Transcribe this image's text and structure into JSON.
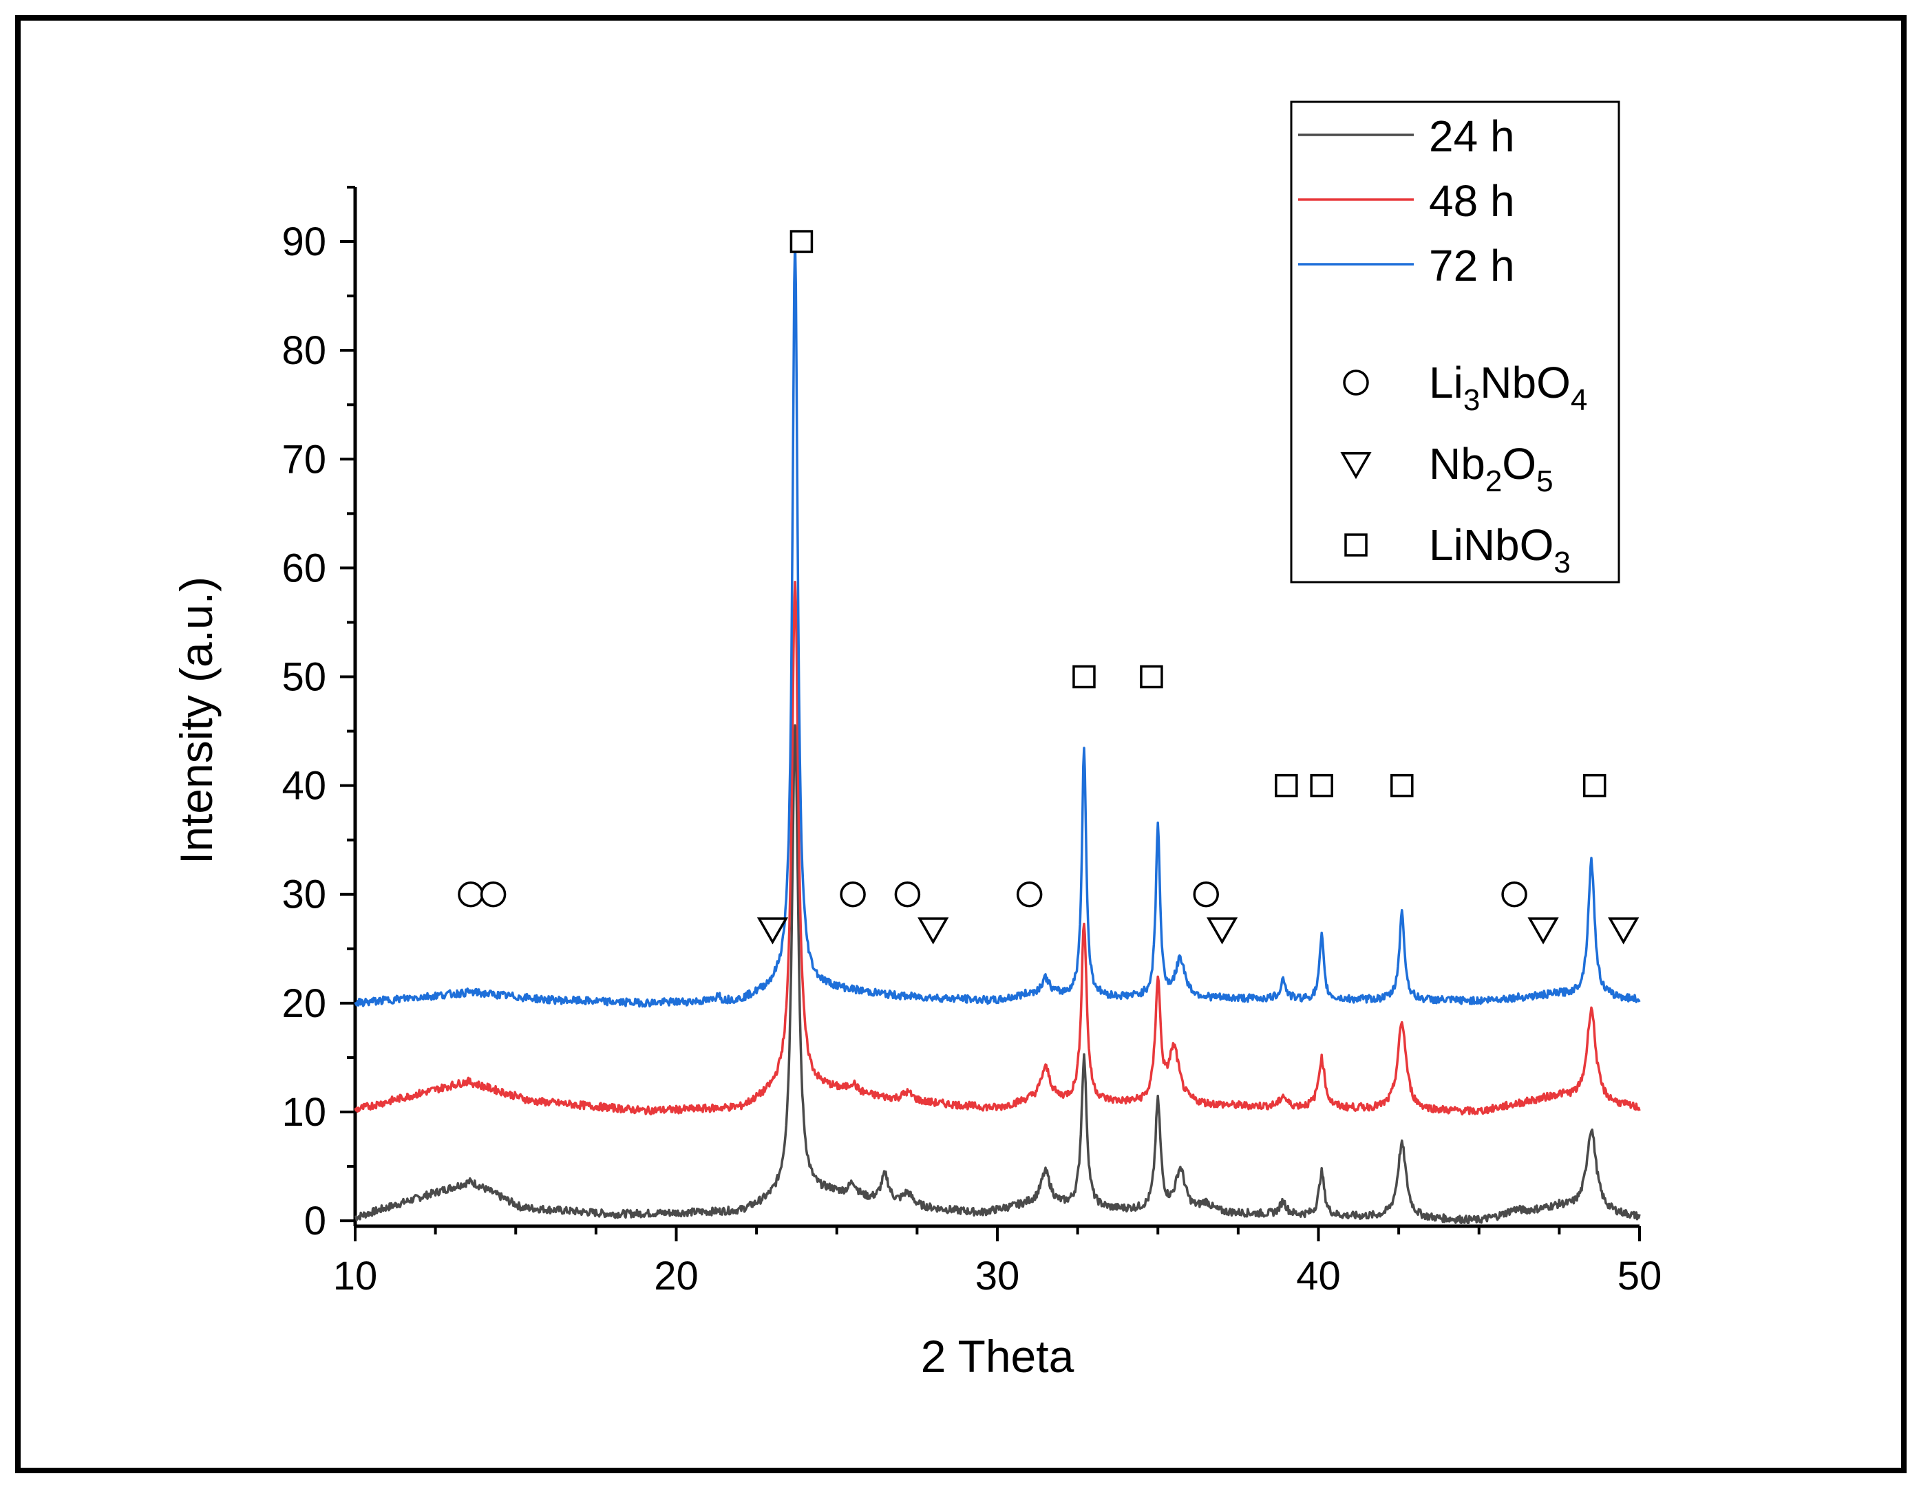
{
  "chart_data": {
    "type": "line",
    "title": "",
    "xlabel": "2 Theta",
    "ylabel": "Intensity (a.u.)",
    "xlim": [
      10,
      50
    ],
    "ylim": [
      -0.5,
      95
    ],
    "x_ticks": [
      10,
      20,
      30,
      40,
      50
    ],
    "y_ticks": [
      0,
      10,
      20,
      30,
      40,
      50,
      60,
      70,
      80,
      90
    ],
    "grid": false,
    "series": [
      {
        "name": "24 h",
        "color": "#4a4a4a",
        "baseline": 0.3,
        "background": [
          [
            10,
            0.3
          ],
          [
            13.6,
            3.6
          ],
          [
            15.2,
            1.2
          ],
          [
            18,
            0.6
          ],
          [
            22,
            0.8
          ],
          [
            23.3,
            2.0
          ],
          [
            24.8,
            2.5
          ],
          [
            27,
            1.3
          ],
          [
            29.5,
            0.7
          ],
          [
            31,
            1.5
          ],
          [
            33.5,
            1.0
          ],
          [
            45,
            0
          ],
          [
            47.5,
            1.3
          ],
          [
            50,
            0.3
          ]
        ],
        "peaks": [
          {
            "x": 23.7,
            "height": 43.5,
            "width": 0.12
          },
          {
            "x": 25.5,
            "height": 1.2,
            "width": 0.15
          },
          {
            "x": 26.5,
            "height": 2.5,
            "width": 0.15
          },
          {
            "x": 27.2,
            "height": 1.2,
            "width": 0.2
          },
          {
            "x": 31.5,
            "height": 3.0,
            "width": 0.18
          },
          {
            "x": 32.7,
            "height": 13.8,
            "width": 0.1
          },
          {
            "x": 35.0,
            "height": 10.0,
            "width": 0.1
          },
          {
            "x": 35.7,
            "height": 3.8,
            "width": 0.18
          },
          {
            "x": 36.5,
            "height": 0.8,
            "width": 0.2
          },
          {
            "x": 38.9,
            "height": 1.2,
            "width": 0.12
          },
          {
            "x": 40.1,
            "height": 4.0,
            "width": 0.1
          },
          {
            "x": 42.6,
            "height": 6.8,
            "width": 0.16
          },
          {
            "x": 46.1,
            "height": 0.4,
            "width": 0.3
          },
          {
            "x": 48.5,
            "height": 7.5,
            "width": 0.18
          }
        ]
      },
      {
        "name": "48 h",
        "color": "#e8383b",
        "baseline": 10.2,
        "background": [
          [
            10,
            10.2
          ],
          [
            13.5,
            12.8
          ],
          [
            15.5,
            11.0
          ],
          [
            19,
            10.1
          ],
          [
            22,
            10.3
          ],
          [
            23.3,
            12.0
          ],
          [
            24.8,
            12.0
          ],
          [
            27,
            11.0
          ],
          [
            30,
            10.3
          ],
          [
            31,
            11.0
          ],
          [
            33.5,
            10.8
          ],
          [
            45,
            10.0
          ],
          [
            47.5,
            11.5
          ],
          [
            50,
            10.3
          ]
        ],
        "peaks": [
          {
            "x": 23.7,
            "height": 47.0,
            "width": 0.12
          },
          {
            "x": 25.5,
            "height": 0.8,
            "width": 0.15
          },
          {
            "x": 27.2,
            "height": 0.8,
            "width": 0.2
          },
          {
            "x": 31.5,
            "height": 3.0,
            "width": 0.18
          },
          {
            "x": 32.7,
            "height": 16.5,
            "width": 0.1
          },
          {
            "x": 35.0,
            "height": 11.0,
            "width": 0.1
          },
          {
            "x": 35.5,
            "height": 5.0,
            "width": 0.2
          },
          {
            "x": 38.9,
            "height": 1.0,
            "width": 0.12
          },
          {
            "x": 40.1,
            "height": 4.5,
            "width": 0.12
          },
          {
            "x": 42.6,
            "height": 8.0,
            "width": 0.16
          },
          {
            "x": 48.5,
            "height": 8.5,
            "width": 0.16
          }
        ]
      },
      {
        "name": "72 h",
        "color": "#1e6fd9",
        "baseline": 20.0,
        "background": [
          [
            10,
            20.0
          ],
          [
            13.6,
            21.0
          ],
          [
            16,
            20.3
          ],
          [
            19,
            20.0
          ],
          [
            22,
            20.2
          ],
          [
            23.3,
            21.5
          ],
          [
            24.8,
            21.3
          ],
          [
            27,
            20.6
          ],
          [
            30,
            20.2
          ],
          [
            31,
            20.8
          ],
          [
            33.5,
            20.5
          ],
          [
            45,
            20.2
          ],
          [
            47.5,
            20.8
          ],
          [
            50,
            20.3
          ]
        ],
        "peaks": [
          {
            "x": 21.3,
            "height": 0.8,
            "width": 0.05
          },
          {
            "x": 23.7,
            "height": 68.5,
            "width": 0.1
          },
          {
            "x": 31.5,
            "height": 1.5,
            "width": 0.15
          },
          {
            "x": 32.7,
            "height": 23.0,
            "width": 0.08
          },
          {
            "x": 35.0,
            "height": 15.8,
            "width": 0.08
          },
          {
            "x": 35.7,
            "height": 3.5,
            "width": 0.18
          },
          {
            "x": 38.9,
            "height": 1.8,
            "width": 0.1
          },
          {
            "x": 40.1,
            "height": 5.8,
            "width": 0.08
          },
          {
            "x": 42.6,
            "height": 8.0,
            "width": 0.1
          },
          {
            "x": 48.5,
            "height": 12.5,
            "width": 0.12
          }
        ]
      }
    ],
    "markers": [
      {
        "shape": "circle",
        "phase": "Li3NbO4",
        "points": [
          [
            13.6,
            30
          ],
          [
            14.3,
            30
          ],
          [
            25.5,
            30
          ],
          [
            27.2,
            30
          ],
          [
            31.0,
            30
          ],
          [
            36.5,
            30
          ],
          [
            46.1,
            30
          ]
        ]
      },
      {
        "shape": "triangle",
        "phase": "Nb2O5",
        "points": [
          [
            23.0,
            26.8
          ],
          [
            28.0,
            26.8
          ],
          [
            37.0,
            26.8
          ],
          [
            47.0,
            26.8
          ],
          [
            49.5,
            26.8
          ]
        ]
      },
      {
        "shape": "square",
        "phase": "LiNbO3",
        "points": [
          [
            23.9,
            90
          ],
          [
            32.7,
            50
          ],
          [
            34.8,
            50
          ],
          [
            39.0,
            40
          ],
          [
            40.1,
            40
          ],
          [
            42.6,
            40
          ],
          [
            48.6,
            40
          ]
        ]
      }
    ],
    "legend": {
      "position": "top-right",
      "lines": [
        {
          "label": "24 h",
          "color": "#4a4a4a"
        },
        {
          "label": "48 h",
          "color": "#e8383b"
        },
        {
          "label": "72 h",
          "color": "#1e6fd9"
        }
      ],
      "phases": [
        {
          "shape": "circle",
          "base": "Li",
          "sub1": "3",
          "mid": "NbO",
          "sub2": "4"
        },
        {
          "shape": "triangle",
          "base": "Nb",
          "sub1": "2",
          "mid": "O",
          "sub2": "5"
        },
        {
          "shape": "square",
          "base": "LiNbO",
          "sub1": "3",
          "mid": "",
          "sub2": ""
        }
      ]
    }
  }
}
